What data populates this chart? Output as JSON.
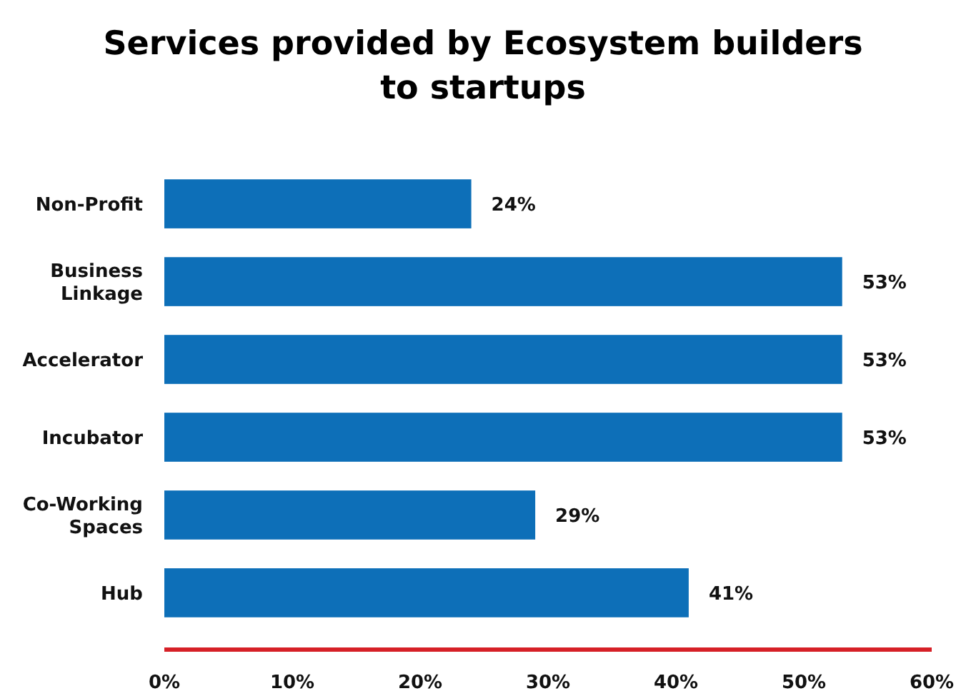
{
  "chart_data": {
    "type": "bar",
    "orientation": "horizontal",
    "title": "Services provided by Ecosystem builders to startups",
    "categories": [
      "Non-Profit",
      "Business Linkage",
      "Accelerator",
      "Incubator",
      "Co-Working Spaces",
      "Hub"
    ],
    "values": [
      24,
      53,
      53,
      53,
      29,
      41
    ],
    "value_labels": [
      "24%",
      "53%",
      "53%",
      "53%",
      "29%",
      "41%"
    ],
    "color": "#0d6fb8",
    "xlim": [
      0,
      60
    ],
    "xticks": [
      {
        "value": 0,
        "label": "0%"
      },
      {
        "value": 10,
        "label": "10%"
      },
      {
        "value": 20,
        "label": "20%"
      },
      {
        "value": 30,
        "label": "30%"
      },
      {
        "value": 40,
        "label": "40%"
      },
      {
        "value": 50,
        "label": "50%"
      },
      {
        "value": 60,
        "label": "60%"
      }
    ],
    "grid": false
  }
}
